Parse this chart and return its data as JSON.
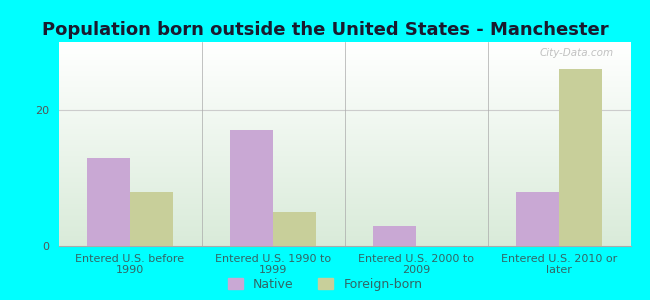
{
  "title": "Population born outside the United States - Manchester",
  "categories": [
    "Entered U.S. before\n1990",
    "Entered U.S. 1990 to\n1999",
    "Entered U.S. 2000 to\n2009",
    "Entered U.S. 2010 or\nlater"
  ],
  "native_values": [
    13,
    17,
    3,
    8
  ],
  "foreign_values": [
    8,
    5,
    0,
    26
  ],
  "native_color": "#c9a8d4",
  "foreign_color": "#c8cf9a",
  "background_outer": "#00ffff",
  "ylim": [
    0,
    30
  ],
  "yticks": [
    0,
    20
  ],
  "bar_width": 0.3,
  "legend_labels": [
    "Native",
    "Foreign-born"
  ],
  "watermark": "City-Data.com",
  "title_fontsize": 13,
  "tick_label_fontsize": 8,
  "legend_fontsize": 9,
  "title_color": "#1a1a2e",
  "tick_color": "#336666"
}
